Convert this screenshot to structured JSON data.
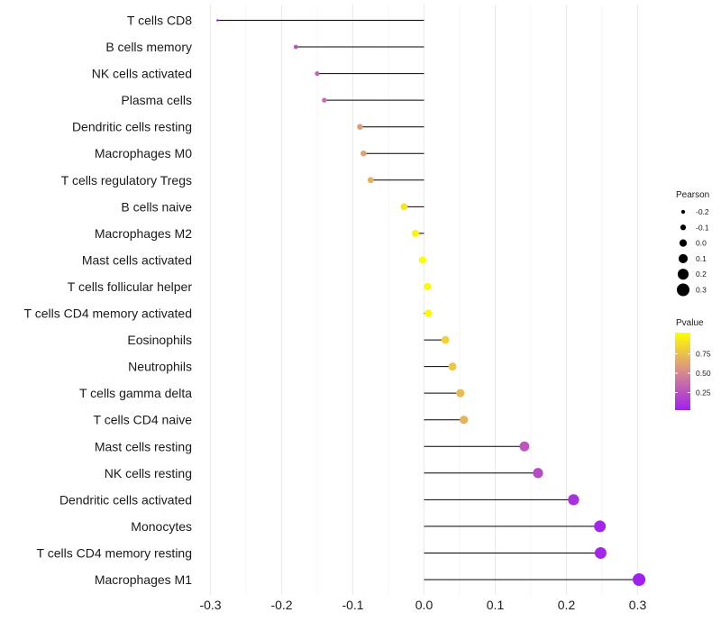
{
  "chart_data": {
    "type": "lollipop",
    "title": "",
    "xlabel": "",
    "ylabel": "",
    "xlim": [
      -0.3,
      0.3
    ],
    "x_ticks": [
      -0.3,
      -0.2,
      -0.1,
      0.0,
      0.1,
      0.2,
      0.3
    ],
    "x_tick_labels": [
      "-0.3",
      "-0.2",
      "-0.1",
      "0.0",
      "0.1",
      "0.2",
      "0.3"
    ],
    "categories": [
      "T cells CD8",
      "B cells memory",
      "NK cells activated",
      "Plasma cells",
      "Dendritic cells resting",
      "Macrophages M0",
      "T cells regulatory  Tregs",
      "B cells naive",
      "Macrophages M2",
      "Mast cells activated",
      "T cells follicular helper",
      "T cells CD4 memory activated",
      "Eosinophils",
      "Neutrophils",
      "T cells gamma delta",
      "T cells CD4 naive",
      "Mast cells resting",
      "NK cells resting",
      "Dendritic cells activated",
      "Monocytes",
      "T cells CD4 memory resting",
      "Macrophages M1"
    ],
    "pearson": [
      -0.29,
      -0.18,
      -0.15,
      -0.14,
      -0.09,
      -0.085,
      -0.075,
      -0.028,
      -0.012,
      -0.002,
      0.005,
      0.006,
      0.03,
      0.04,
      0.051,
      0.056,
      0.141,
      0.16,
      0.21,
      0.247,
      0.248,
      0.302
    ],
    "pvalue": [
      0.02,
      0.22,
      0.32,
      0.36,
      0.58,
      0.6,
      0.66,
      0.88,
      0.95,
      0.99,
      0.98,
      0.97,
      0.8,
      0.75,
      0.7,
      0.68,
      0.25,
      0.2,
      0.08,
      0.03,
      0.03,
      0.004
    ],
    "legend": {
      "size_title": "Pearson",
      "size_labels": [
        "-0.2",
        "-0.1",
        "0.0",
        "0.1",
        "0.2",
        "0.3"
      ],
      "size_values": [
        -0.2,
        -0.1,
        0.0,
        0.1,
        0.2,
        0.3
      ],
      "color_title": "Pvalue",
      "color_labels": [
        "0.75",
        "0.50",
        "0.25"
      ],
      "color_values": [
        0.75,
        0.5,
        0.25
      ],
      "color_range": [
        0.0,
        1.0
      ],
      "color_low": "#a020f0",
      "color_high": "#ffff00",
      "placement": "right"
    },
    "grid": true
  }
}
